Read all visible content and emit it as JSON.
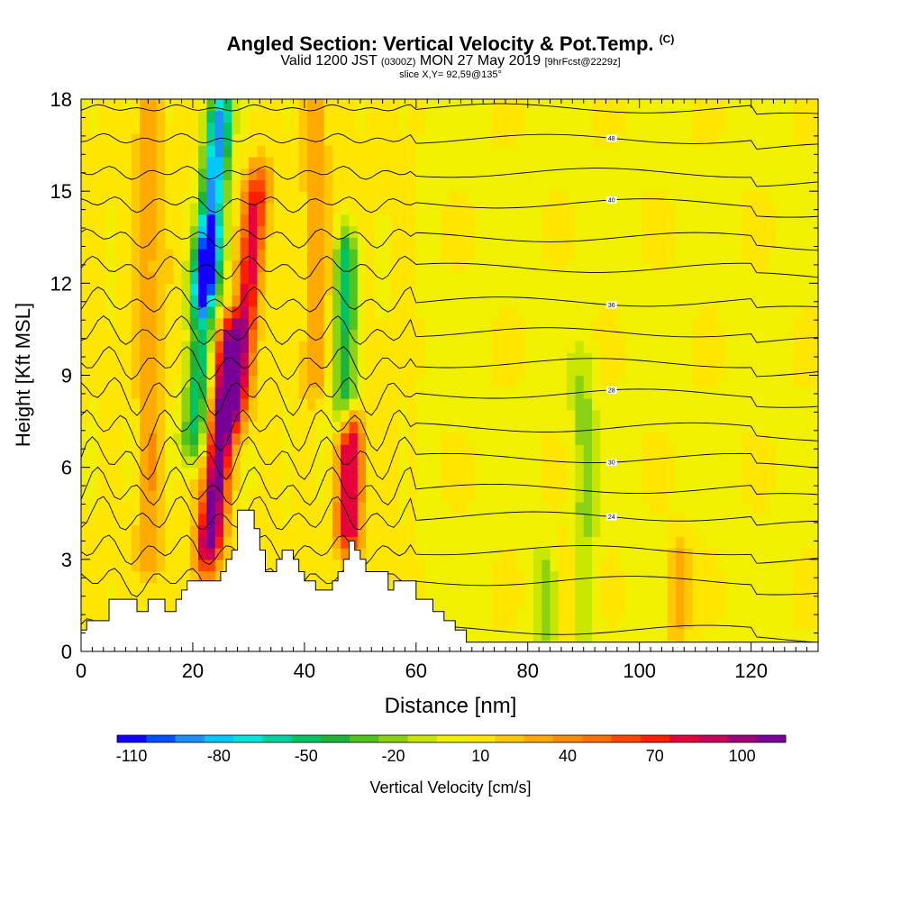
{
  "header": {
    "title_main": "Angled Section: Vertical Velocity & Pot.Temp.",
    "title_mark": "(C)",
    "subtitle_a": "Valid 1200 JST",
    "subtitle_b": "(0300Z)",
    "subtitle_c": "MON 27 May 2019",
    "subtitle_d": "[9hrFcst@2229z]",
    "slice": "slice X,Y= 92,59@135°"
  },
  "colors": {
    "scale": [
      "#1400ff",
      "#0050ff",
      "#1e90ff",
      "#00c8ff",
      "#00e6dc",
      "#00d2a0",
      "#00c364",
      "#1eb43c",
      "#50c31e",
      "#8cd214",
      "#c8e600",
      "#f0f000",
      "#ffe600",
      "#ffc800",
      "#ffaa00",
      "#ff8c00",
      "#ff6e00",
      "#ff4600",
      "#ff1e00",
      "#e6003c",
      "#c8005a",
      "#a00078",
      "#780096"
    ],
    "background_field": "#b4e600",
    "terrain": "#ffffff"
  },
  "chart_data": {
    "type": "heatmap",
    "xlabel": "Distance [nm]",
    "ylabel": "Height [Kft MSL]",
    "xlim": [
      0,
      132
    ],
    "ylim": [
      0,
      18
    ],
    "xticks": [
      "0",
      "20",
      "40",
      "60",
      "80",
      "100",
      "120"
    ],
    "yticks": [
      "0",
      "3",
      "6",
      "9",
      "12",
      "15",
      "18"
    ],
    "colorbar": {
      "label": "Vertical Velocity [cm/s]",
      "tick_labels": [
        "-110",
        "-80",
        "-50",
        "-20",
        "10",
        "40",
        "70",
        "100"
      ],
      "range": [
        -115,
        115
      ],
      "step": 10
    },
    "velocity_features": [
      {
        "type": "updraft",
        "x": 23,
        "y_bottom": 3.5,
        "y_top": 10,
        "peak": 110,
        "tilt": 0.22
      },
      {
        "type": "updraft",
        "x": 28,
        "y_bottom": 8,
        "y_top": 15,
        "peak": 70,
        "tilt": 0.2
      },
      {
        "type": "downdraft",
        "x": 20,
        "y_bottom": 7,
        "y_top": 13,
        "peak": -60,
        "tilt": 0.2
      },
      {
        "type": "downdraft",
        "x": 22,
        "y_bottom": 12,
        "y_top": 17.5,
        "peak": -100,
        "tilt": 0.22
      },
      {
        "type": "updraft",
        "x": 48,
        "y_bottom": 4,
        "y_top": 7,
        "peak": 80,
        "tilt": 0.05
      },
      {
        "type": "downdraft",
        "x": 47,
        "y_bottom": 8,
        "y_top": 13,
        "peak": -50,
        "tilt": 0.05
      },
      {
        "type": "updraft",
        "x": 12,
        "y_bottom": 3,
        "y_top": 18,
        "peak": 25,
        "tilt": 0
      },
      {
        "type": "updraft",
        "x": 42,
        "y_bottom": 9,
        "y_top": 18,
        "peak": 25,
        "tilt": 0
      },
      {
        "type": "downdraft",
        "x": 90,
        "y_bottom": 0.5,
        "y_top": 9,
        "peak": -20,
        "tilt": 0
      },
      {
        "type": "downdraft",
        "x": 83,
        "y_bottom": 0.5,
        "y_top": 2.5,
        "peak": -20,
        "tilt": 0
      },
      {
        "type": "updraft",
        "x": 107,
        "y_bottom": 1,
        "y_top": 3,
        "peak": 30,
        "tilt": 0
      },
      {
        "type": "updraft",
        "x": 87,
        "y_bottom": 1,
        "y_top": 3,
        "peak": 20,
        "tilt": 0
      }
    ],
    "theta_contours": [
      {
        "base": 0.7,
        "label": "",
        "amp": 0.8
      },
      {
        "base": 2.3,
        "label": "",
        "amp": 0.9
      },
      {
        "base": 3.3,
        "label": "",
        "amp": 0.9
      },
      {
        "base": 4.4,
        "label": "24",
        "amp": 1.1
      },
      {
        "base": 5.3,
        "label": "",
        "amp": 1.2
      },
      {
        "base": 6.3,
        "label": "30",
        "amp": 1.3
      },
      {
        "base": 7.3,
        "label": "",
        "amp": 1.3
      },
      {
        "base": 8.4,
        "label": "28",
        "amp": 1.2
      },
      {
        "base": 9.4,
        "label": "",
        "amp": 1.0
      },
      {
        "base": 10.4,
        "label": "",
        "amp": 0.9
      },
      {
        "base": 11.4,
        "label": "36",
        "amp": 0.8
      },
      {
        "base": 12.5,
        "label": "",
        "amp": 0.7
      },
      {
        "base": 13.5,
        "label": "",
        "amp": 0.6
      },
      {
        "base": 14.6,
        "label": "40",
        "amp": 0.5
      },
      {
        "base": 15.6,
        "label": "",
        "amp": 0.4
      },
      {
        "base": 16.7,
        "label": "48",
        "amp": 0.3
      },
      {
        "base": 17.7,
        "label": "",
        "amp": 0.2
      }
    ],
    "terrain_kft": [
      [
        0,
        0.7
      ],
      [
        1,
        0.7
      ],
      [
        1,
        1
      ],
      [
        5,
        1
      ],
      [
        5,
        1.7
      ],
      [
        10,
        1.7
      ],
      [
        10,
        1.3
      ],
      [
        12,
        1.3
      ],
      [
        12,
        1.7
      ],
      [
        15,
        1.7
      ],
      [
        15,
        1.3
      ],
      [
        17,
        1.3
      ],
      [
        17,
        1.7
      ],
      [
        18,
        1.7
      ],
      [
        18,
        2
      ],
      [
        19,
        2
      ],
      [
        19,
        2.3
      ],
      [
        25,
        2.3
      ],
      [
        25,
        2.6
      ],
      [
        26,
        2.6
      ],
      [
        26,
        3
      ],
      [
        27,
        3
      ],
      [
        27,
        3.3
      ],
      [
        28,
        3.3
      ],
      [
        28,
        4.6
      ],
      [
        31,
        4.6
      ],
      [
        31,
        4
      ],
      [
        32,
        4
      ],
      [
        32,
        3.3
      ],
      [
        33,
        3.3
      ],
      [
        33,
        2.6
      ],
      [
        35,
        2.6
      ],
      [
        35,
        3
      ],
      [
        36,
        3
      ],
      [
        36,
        3.3
      ],
      [
        38,
        3.3
      ],
      [
        38,
        3
      ],
      [
        39,
        3
      ],
      [
        39,
        2.6
      ],
      [
        40,
        2.6
      ],
      [
        40,
        2.3
      ],
      [
        42,
        2.3
      ],
      [
        42,
        2
      ],
      [
        45,
        2
      ],
      [
        45,
        2.3
      ],
      [
        46,
        2.3
      ],
      [
        46,
        2.6
      ],
      [
        47,
        2.6
      ],
      [
        47,
        3
      ],
      [
        48,
        3
      ],
      [
        48,
        3.6
      ],
      [
        49,
        3.6
      ],
      [
        49,
        3.3
      ],
      [
        50,
        3.3
      ],
      [
        50,
        3
      ],
      [
        51,
        3
      ],
      [
        51,
        2.6
      ],
      [
        55,
        2.6
      ],
      [
        55,
        2
      ],
      [
        56,
        2
      ],
      [
        56,
        2.3
      ],
      [
        60,
        2.3
      ],
      [
        60,
        1.7
      ],
      [
        63,
        1.7
      ],
      [
        63,
        1.3
      ],
      [
        65,
        1.3
      ],
      [
        65,
        1
      ],
      [
        67,
        1
      ],
      [
        67,
        0.7
      ],
      [
        69,
        0.7
      ],
      [
        69,
        0.3
      ],
      [
        132,
        0.3
      ],
      [
        132,
        0
      ],
      [
        0,
        0
      ]
    ]
  }
}
